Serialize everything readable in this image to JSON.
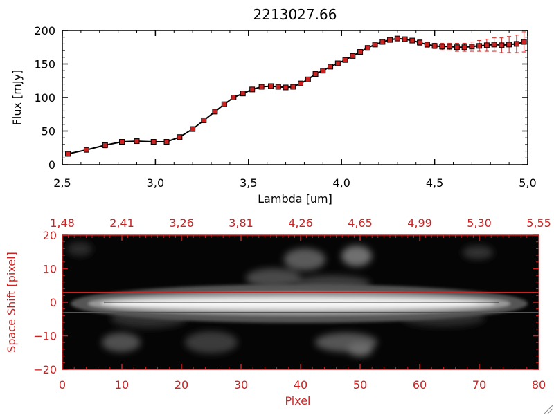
{
  "chart_data": [
    {
      "type": "line",
      "title": "2213027.66",
      "xlabel": "Lambda [um]",
      "ylabel": "Flux [mJy]",
      "xlim": [
        2.5,
        5.0
      ],
      "ylim": [
        0,
        200
      ],
      "xticks": [
        "2.5",
        "3.0",
        "3.5",
        "4.0",
        "4.5",
        "5.0"
      ],
      "yticks": [
        "0",
        "50",
        "100",
        "150",
        "200"
      ],
      "grid": false,
      "colors": {
        "line": "#000000",
        "marker": "#cc2222",
        "errorbar": "#cc2222"
      },
      "series": [
        {
          "x": [
            2.53,
            2.63,
            2.73,
            2.82,
            2.9,
            2.99,
            3.06,
            3.13,
            3.2,
            3.26,
            3.32,
            3.37,
            3.42,
            3.47,
            3.52,
            3.57,
            3.62,
            3.66,
            3.7,
            3.74,
            3.78,
            3.82,
            3.86,
            3.9,
            3.94,
            3.98,
            4.02,
            4.06,
            4.1,
            4.14,
            4.18,
            4.22,
            4.26,
            4.3,
            4.34,
            4.38,
            4.42,
            4.46,
            4.5,
            4.54,
            4.58,
            4.62,
            4.66,
            4.7,
            4.74,
            4.78,
            4.82,
            4.86,
            4.9,
            4.94,
            4.98
          ],
          "values": [
            16,
            22,
            29,
            34,
            35,
            34,
            34,
            41,
            53,
            66,
            79,
            90,
            100,
            106,
            112,
            116,
            117,
            116,
            115,
            116,
            121,
            127,
            135,
            140,
            146,
            151,
            156,
            162,
            168,
            174,
            179,
            183,
            186,
            188,
            187,
            185,
            182,
            179,
            177,
            176,
            176,
            175,
            175,
            176,
            177,
            178,
            179,
            178,
            179,
            180,
            183
          ],
          "errors": [
            1,
            1,
            4,
            3,
            2,
            1,
            1,
            1,
            1,
            1,
            1,
            1,
            1,
            1,
            1,
            1,
            1,
            1,
            1,
            1,
            1,
            1,
            1,
            1,
            1,
            1,
            1,
            1,
            2,
            2,
            2,
            2,
            2,
            3,
            3,
            3,
            4,
            4,
            4,
            5,
            5,
            6,
            6,
            7,
            8,
            9,
            10,
            11,
            12,
            13,
            15
          ]
        }
      ]
    },
    {
      "type": "heatmap",
      "xlabel": "Pixel",
      "ylabel": "Space Shift [pixel]",
      "xlim": [
        0,
        80
      ],
      "ylim": [
        -20,
        20
      ],
      "xticks": [
        "0",
        "10",
        "20",
        "30",
        "40",
        "50",
        "60",
        "70",
        "80"
      ],
      "yticks": [
        "-20",
        "-10",
        "0",
        "10",
        "20"
      ],
      "top_ticks": [
        "1.48",
        "2.41",
        "3.26",
        "3.81",
        "4.26",
        "4.65",
        "4.99",
        "5.30",
        "5.55"
      ],
      "colormap": "grayscale",
      "extraction_aperture": [
        -3,
        3
      ],
      "colors": {
        "axes": "#cc2222",
        "aperture_lines": "#cc2222"
      }
    }
  ]
}
